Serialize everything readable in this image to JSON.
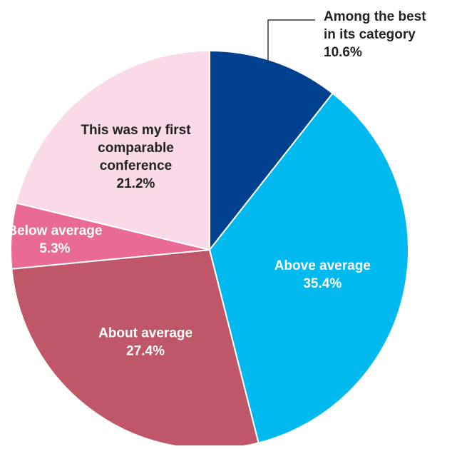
{
  "chart_data": {
    "type": "pie",
    "slices": [
      {
        "label": "Among the best in its category",
        "label_lines": [
          "Among the best",
          "in its category"
        ],
        "value_text": "10.6%",
        "value": 10.6,
        "color": "#00418f",
        "text_color": "#222222",
        "label_position": "outside"
      },
      {
        "label": "Above average",
        "label_lines": [
          "Above average"
        ],
        "value_text": "35.4%",
        "value": 35.4,
        "color": "#00b9ef",
        "text_color": "#ffffff",
        "label_position": "inside"
      },
      {
        "label": "About average",
        "label_lines": [
          "About average"
        ],
        "value_text": "27.4%",
        "value": 27.4,
        "color": "#bf5769",
        "text_color": "#ffffff",
        "label_position": "inside"
      },
      {
        "label": "Below average",
        "label_lines": [
          "Below average"
        ],
        "value_text": "5.3%",
        "value": 5.3,
        "color": "#e96b93",
        "text_color": "#ffffff",
        "label_position": "inside"
      },
      {
        "label": "This was my first comparable conference",
        "label_lines": [
          "This was my first",
          "comparable",
          "conference"
        ],
        "value_text": "21.2%",
        "value": 21.2,
        "color": "#fad9e8",
        "text_color": "#222222",
        "label_position": "inside"
      }
    ],
    "start": "12 o'clock",
    "direction": "clockwise",
    "title": "",
    "legend": "none"
  }
}
